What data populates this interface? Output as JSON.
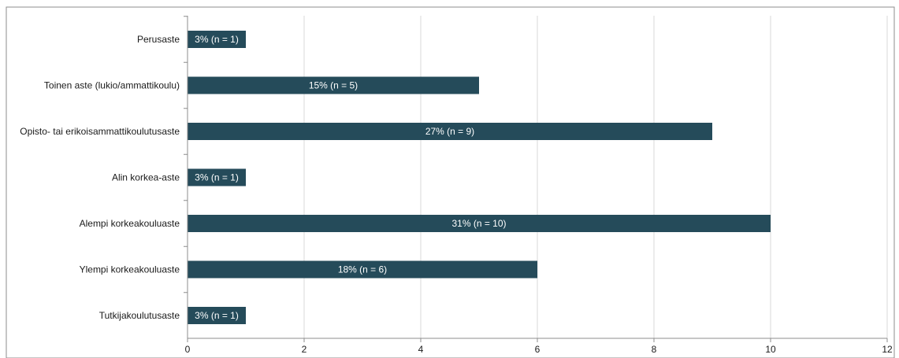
{
  "chart_data": {
    "type": "bar",
    "orientation": "horizontal",
    "categories": [
      "Perusaste",
      "Toinen aste (lukio/ammattikoulu)",
      "Opisto- tai erikoisammattikoulutusaste",
      "Alin korkea-aste",
      "Alempi korkeakouluaste",
      "Ylempi korkeakouluaste",
      "Tutkijakoulutusaste"
    ],
    "values": [
      1,
      5,
      9,
      1,
      10,
      6,
      1
    ],
    "data_labels": [
      "3% (n = 1)",
      "15% (n = 5)",
      "27% (n = 9)",
      "3% (n = 1)",
      "31% (n = 10)",
      "18% (n = 6)",
      "3% (n = 1)"
    ],
    "xlim": [
      0,
      12
    ],
    "xticks": [
      "0",
      "2",
      "4",
      "6",
      "8",
      "10",
      "12"
    ],
    "grid": true,
    "bar_color": "#254b5a",
    "grid_color": "#d9d9d9",
    "axis_color": "#8c8c8c"
  }
}
